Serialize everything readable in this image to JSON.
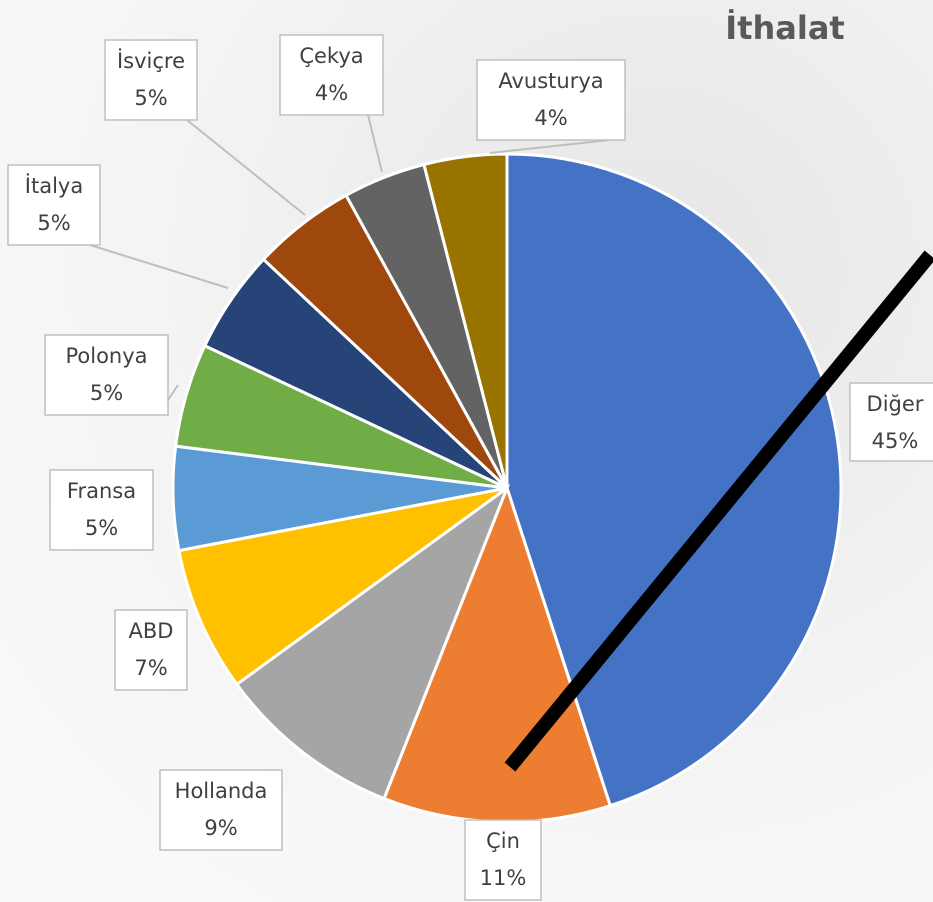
{
  "chart_data": {
    "type": "pie",
    "title": "İthalat",
    "categories": [
      "Diğer",
      "Çin",
      "Hollanda",
      "ABD",
      "Fransa",
      "Polonya",
      "İtalya",
      "İsviçre",
      "Çekya",
      "Avusturya"
    ],
    "values": [
      45,
      11,
      9,
      7,
      5,
      5,
      5,
      5,
      4,
      4
    ],
    "value_labels": [
      "45%",
      "11%",
      "9%",
      "7%",
      "5%",
      "5%",
      "5%",
      "5%",
      "4%",
      "4%"
    ],
    "colors": [
      "#4472c4",
      "#ed7d31",
      "#a5a5a5",
      "#ffc000",
      "#5b9bd5",
      "#70ad47",
      "#264478",
      "#9e480e",
      "#636363",
      "#997300"
    ]
  }
}
